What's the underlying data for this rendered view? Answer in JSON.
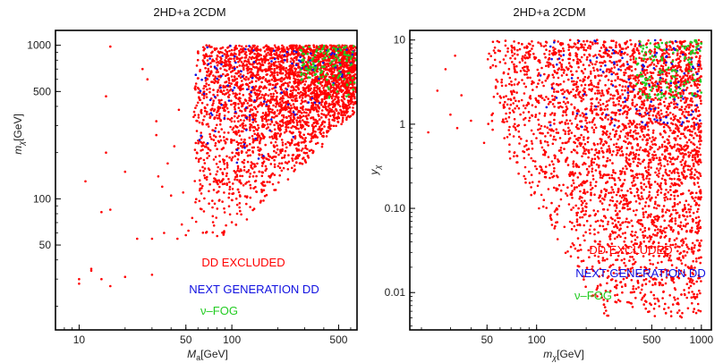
{
  "colors": {
    "excluded": "#ff0000",
    "next_generation": "#1010e0",
    "nu_fog": "#22cc22",
    "frame": "#000000"
  },
  "chart_data": [
    {
      "type": "scatter",
      "title": "2HD+a 2CDM",
      "xlabel": "M_a[GeV]",
      "ylabel": "m_χ[GeV]",
      "xscale": "log",
      "yscale": "log",
      "xlim": [
        7,
        660
      ],
      "ylim": [
        14,
        1250
      ],
      "x_ticks": [
        {
          "value": 10,
          "label": "10"
        },
        {
          "value": 50,
          "label": "50"
        },
        {
          "value": 100,
          "label": "100"
        },
        {
          "value": 500,
          "label": "500"
        }
      ],
      "y_ticks": [
        {
          "value": 50,
          "label": "50"
        },
        {
          "value": 100,
          "label": "100"
        },
        {
          "value": 500,
          "label": "500"
        },
        {
          "value": 1000,
          "label": "1000"
        }
      ],
      "grid": false,
      "legend_position": "bottom-center",
      "series": [
        {
          "name": "DD EXCLUDED",
          "color": "#ff0000",
          "region": {
            "x_min": 56,
            "x_max": 650,
            "y_lower": "≈0.6·M_a",
            "y_max": 1000
          }
        },
        {
          "name": "NEXT GENERATION DD",
          "color": "#1010e0",
          "region": {
            "x_min": 58,
            "x_max": 640,
            "y_min": 90,
            "y_max": 1000
          }
        },
        {
          "name": "ν–FOG",
          "color": "#22cc22",
          "region": {
            "x_min": 280,
            "x_max": 650,
            "y_min": 400,
            "y_max": 1000
          }
        }
      ],
      "sparse_points": [
        [
          16,
          980
        ],
        [
          11,
          130
        ],
        [
          12,
          35
        ],
        [
          14,
          82
        ],
        [
          15,
          465
        ],
        [
          15,
          200
        ],
        [
          16,
          85
        ],
        [
          20,
          150
        ],
        [
          24,
          55
        ],
        [
          26,
          700
        ],
        [
          28,
          600
        ],
        [
          30,
          55
        ],
        [
          32,
          320
        ],
        [
          32,
          260
        ],
        [
          33,
          140
        ],
        [
          36,
          60
        ],
        [
          38,
          170
        ],
        [
          40,
          105
        ],
        [
          44,
          55
        ],
        [
          47,
          68
        ],
        [
          50,
          58
        ],
        [
          10,
          30
        ],
        [
          10,
          28
        ],
        [
          12,
          34
        ],
        [
          14,
          30
        ],
        [
          16,
          27
        ],
        [
          20,
          31
        ],
        [
          30,
          32
        ],
        [
          35,
          120
        ],
        [
          42,
          220
        ],
        [
          45,
          380
        ],
        [
          48,
          110
        ],
        [
          52,
          62
        ],
        [
          55,
          75
        ]
      ]
    },
    {
      "type": "scatter",
      "title": "2HD+a 2CDM",
      "xlabel": "m_χ[GeV]",
      "ylabel": "y_χ",
      "xscale": "log",
      "yscale": "log",
      "xlim": [
        17,
        1150
      ],
      "ylim": [
        0.0036,
        13
      ],
      "x_ticks": [
        {
          "value": 50,
          "label": "50"
        },
        {
          "value": 100,
          "label": "100"
        },
        {
          "value": 500,
          "label": "500"
        },
        {
          "value": 1000,
          "label": "1000"
        }
      ],
      "y_ticks": [
        {
          "value": 0.01,
          "label": "0.01"
        },
        {
          "value": 0.1,
          "label": "0.10"
        },
        {
          "value": 1,
          "label": "1"
        },
        {
          "value": 10,
          "label": "10"
        }
      ],
      "grid": false,
      "legend_position": "bottom-right",
      "series": [
        {
          "name": "DD EXCLUDED",
          "color": "#ff0000",
          "region": {
            "x_min": 50,
            "x_max": 1000,
            "y_min": 0.005,
            "y_max": 10
          }
        },
        {
          "name": "NEXT GENERATION DD",
          "color": "#1010e0",
          "region": {
            "x_min": 90,
            "x_max": 1000,
            "y_min": 0.8,
            "y_max": 10
          }
        },
        {
          "name": "ν–FOG",
          "color": "#22cc22",
          "region": {
            "x_min": 400,
            "x_max": 1000,
            "y_min": 2,
            "y_max": 10
          }
        }
      ],
      "sparse_points": [
        [
          22,
          0.8
        ],
        [
          25,
          2.5
        ],
        [
          28,
          4.5
        ],
        [
          30,
          1.3
        ],
        [
          32,
          6.5
        ],
        [
          35,
          2.2
        ],
        [
          33,
          0.9
        ],
        [
          40,
          1.1
        ],
        [
          48,
          0.6
        ],
        [
          55,
          7.5
        ],
        [
          58,
          3.2
        ],
        [
          60,
          1.8
        ]
      ]
    }
  ],
  "legend": {
    "excluded": "DD EXCLUDED",
    "next_generation": "NEXT GENERATION DD",
    "nu_fog": "ν–FOG"
  }
}
